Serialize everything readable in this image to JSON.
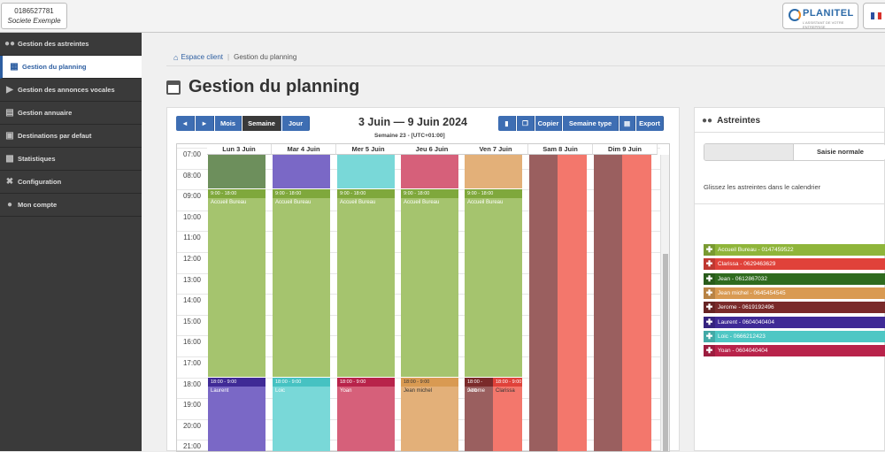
{
  "account": {
    "number": "0186527781",
    "company": "Societe Exemple"
  },
  "brand": {
    "name": "PLANITEL",
    "tagline": "L'ASSISTANT DE VOTRE ENTREPRISE"
  },
  "sidebar": {
    "items": [
      {
        "label": "Gestion des astreintes",
        "icon": "users-icon"
      },
      {
        "label": "Gestion du planning",
        "icon": "calendar-icon",
        "active": true
      },
      {
        "label": "Gestion des annonces vocales",
        "icon": "speaker-icon"
      },
      {
        "label": "Gestion annuaire",
        "icon": "address-book-icon"
      },
      {
        "label": "Destinations par defaut",
        "icon": "routing-icon"
      },
      {
        "label": "Statistiques",
        "icon": "bar-chart-icon"
      },
      {
        "label": "Configuration",
        "icon": "wrench-icon"
      },
      {
        "label": "Mon compte",
        "icon": "user-icon"
      }
    ]
  },
  "breadcrumb": {
    "home": "Espace client",
    "current": "Gestion du planning"
  },
  "page_title": "Gestion du planning",
  "calendar": {
    "nav": {
      "prev": "◄",
      "next": "►",
      "month": "Mois",
      "week": "Semaine",
      "day": "Jour"
    },
    "actions": {
      "copy": "Copier",
      "week_type": "Semaine type",
      "export": "Export"
    },
    "title": "3 Juin — 9 Juin 2024",
    "subtitle": "Semaine 23 - [UTC+01:00]",
    "days": [
      "Lun 3 Juin",
      "Mar 4 Juin",
      "Mer 5 Juin",
      "Jeu 6 Juin",
      "Ven 7 Juin",
      "Sam 8 Juin",
      "Dim 9 Juin"
    ],
    "hours": [
      "07:00",
      "08:00",
      "09:00",
      "10:00",
      "11:00",
      "12:00",
      "13:00",
      "14:00",
      "15:00",
      "16:00",
      "17:00",
      "18:00",
      "19:00",
      "20:00",
      "21:00"
    ],
    "day_event": {
      "time": "9:00 - 18:00",
      "title": "Accueil Bureau"
    },
    "night_time": "18:00 - 9:00",
    "night_names": [
      "Laurent",
      "Loic",
      "Yoan",
      "Jean michel",
      "Jerome",
      "Clarissa"
    ]
  },
  "astreintes": {
    "title": "Astreintes",
    "mode_label": "Saisie normale",
    "hint": "Glissez les astreintes dans le calendrier",
    "items": [
      {
        "label": "Accueil Bureau - 0147459522",
        "color": "#8fb53a"
      },
      {
        "label": "Clarissa - 0629463629",
        "color": "#e0423a"
      },
      {
        "label": "Jean - 0612867032",
        "color": "#2f6b1f"
      },
      {
        "label": "Jean michel - 0645454545",
        "color": "#d99a52"
      },
      {
        "label": "Jerome - 0619192496",
        "color": "#7a2a2a"
      },
      {
        "label": "Laurent - 0604040404",
        "color": "#3f2a96"
      },
      {
        "label": "Loic - 0666212423",
        "color": "#4ec7c4"
      },
      {
        "label": "Yoan - 0604040404",
        "color": "#b8234a"
      }
    ]
  },
  "colors": {
    "accent": "#3e6eb3",
    "dark_green": "#6d8f5c",
    "day_green": "#a5c46e",
    "day_header_green": "#7fa83c",
    "purple": "#7a68c6",
    "purple_dark": "#3f2a96",
    "cyan": "#79d8d8",
    "cyan_dark": "#46c2c2",
    "rose": "#d6607a",
    "rose_dark": "#b8234a",
    "tan": "#e3b079",
    "tan_dark": "#d99a52",
    "brown": "#9a5f5f",
    "salmon": "#f3776c",
    "red_dark": "#e0423a"
  }
}
